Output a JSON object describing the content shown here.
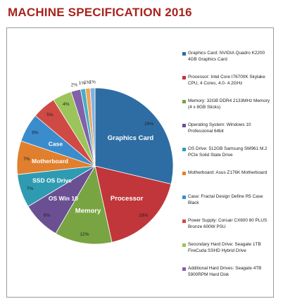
{
  "title": "MACHINE SPECIFICATION 2016",
  "chart_data": {
    "type": "pie",
    "title": "MACHINE SPECIFICATION 2016",
    "slices": [
      {
        "label": "Graphics Card",
        "value": 29,
        "pct_label": "29%",
        "color": "#2e6da4",
        "legend": "Graphics Card: NVIDIA Quadro K2200 4GB Graphics Card"
      },
      {
        "label": "Processor",
        "value": 18,
        "pct_label": "18%",
        "color": "#c0363a",
        "legend": "Processor: Intel Core I76700K Skylake CPU, 4 Cores, 4.0- 4.2GHz"
      },
      {
        "label": "Memory",
        "value": 12,
        "pct_label": "12%",
        "color": "#79a442",
        "legend": "Memory: 32GB DDR4 2133MHz Memory (4 x 8GB Sticks)"
      },
      {
        "label": "OS Win 10",
        "value": 8,
        "pct_label": "8%",
        "color": "#6b4f93",
        "legend": "Operating System: Windows 10 Professional 64bit"
      },
      {
        "label": "SSD OS Drive",
        "value": 7,
        "pct_label": "7%",
        "color": "#2f9bb2",
        "legend": "OS Drive: 512GB Samsung SM961 M.2 PCIe Solid State Drive"
      },
      {
        "label": "Motherboard",
        "value": 7,
        "pct_label": "7%",
        "color": "#e07f2d",
        "legend": "Motherboard: Asus Z176K Motherboard"
      },
      {
        "label": "Case",
        "value": 6,
        "pct_label": "6%",
        "color": "#3b8ccc",
        "legend": "Case: Fractal Design Define R5 Case Black"
      },
      {
        "label": "",
        "value": 5,
        "pct_label": "5%",
        "color": "#d04a45",
        "legend": "Power Supply: Corsair CX600 80 PLUS Bronze 600W PSU"
      },
      {
        "label": "",
        "value": 4,
        "pct_label": "4%",
        "color": "#9bc45a",
        "legend": "Secondary Hard Drive: Seagate 1TB FireCuda SSHD Hybrid Drive"
      },
      {
        "label": "",
        "value": 2,
        "pct_label": "2%",
        "color": "#8360a8",
        "legend": "Additional Hard Drives: Seagate 4TB 5900RPM Hard Disk"
      },
      {
        "label": "",
        "value": 1,
        "pct_label": "1%",
        "color": "#43b0c4",
        "legend": ""
      },
      {
        "label": "",
        "value": 1,
        "pct_label": "1%",
        "color": "#f0a35a",
        "legend": ""
      },
      {
        "label": "",
        "value": 1,
        "pct_label": "1%",
        "color": "#7fb2e2",
        "legend": ""
      }
    ],
    "legend_placement": "right"
  }
}
